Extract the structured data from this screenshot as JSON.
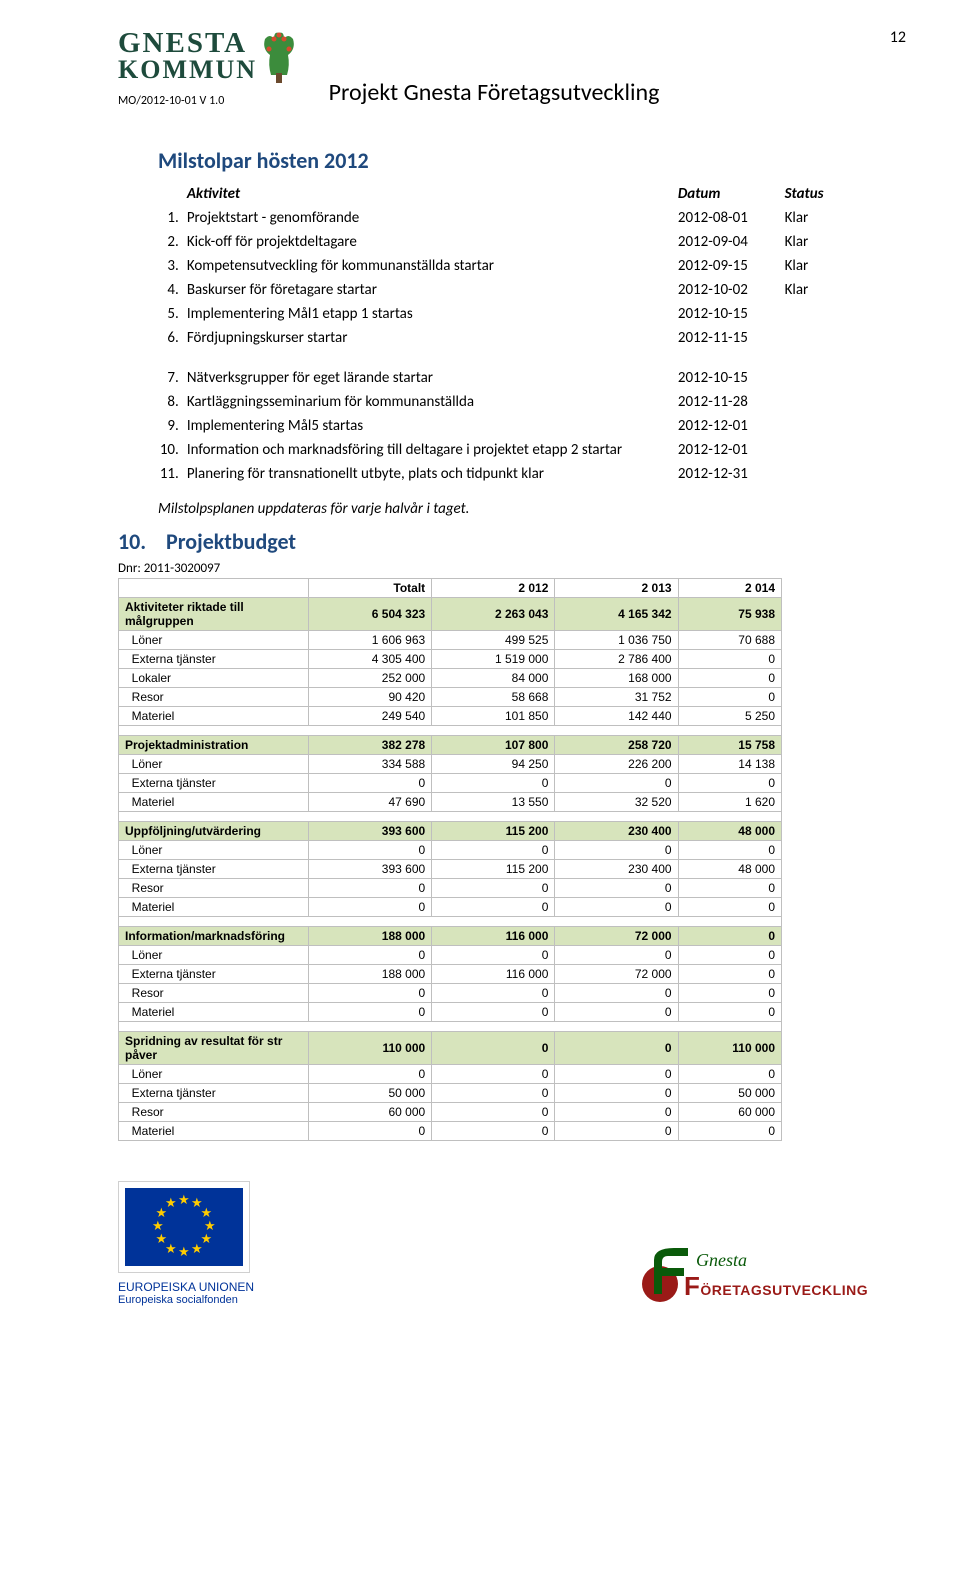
{
  "page_number": "12",
  "logo": {
    "line1": "GNESTA",
    "line2": "KOMMUN"
  },
  "docref": "MO/2012-10-01 V 1.0",
  "project_title": "Projekt Gnesta Företagsutveckling",
  "milestones": {
    "title": "Milstolpar hösten 2012",
    "headers": {
      "activity": "Aktivitet",
      "date": "Datum",
      "status": "Status"
    },
    "rows_a": [
      {
        "n": "1.",
        "activity": "Projektstart - genomförande",
        "date": "2012-08-01",
        "status": "Klar"
      },
      {
        "n": "2.",
        "activity": "Kick-off för projektdeltagare",
        "date": "2012-09-04",
        "status": "Klar"
      },
      {
        "n": "3.",
        "activity": "Kompetensutveckling för kommunanställda startar",
        "date": "2012-09-15",
        "status": "Klar"
      },
      {
        "n": "4.",
        "activity": "Baskurser för företagare startar",
        "date": "2012-10-02",
        "status": "Klar"
      },
      {
        "n": "5.",
        "activity": "Implementering Mål1 etapp 1 startas",
        "date": "2012-10-15",
        "status": ""
      },
      {
        "n": "6.",
        "activity": "Fördjupningskurser startar",
        "date": "2012-11-15",
        "status": ""
      }
    ],
    "rows_b": [
      {
        "n": "7.",
        "activity": "Nätverksgrupper för eget lärande startar",
        "date": "2012-10-15",
        "status": ""
      },
      {
        "n": "8.",
        "activity": "Kartläggningsseminarium för kommunanställda",
        "date": "2012-11-28",
        "status": ""
      },
      {
        "n": "9.",
        "activity": "Implementering Mål5 startas",
        "date": "2012-12-01",
        "status": ""
      },
      {
        "n": "10.",
        "activity": "Information och marknadsföring till deltagare i projektet etapp 2 startar",
        "date": "2012-12-01",
        "status": ""
      },
      {
        "n": "11.",
        "activity": "Planering för transnationellt utbyte, plats och tidpunkt klar",
        "date": "2012-12-31",
        "status": ""
      }
    ],
    "note": "Milstolpsplanen uppdateras för varje halvår i taget."
  },
  "budget_section": {
    "number": "10.",
    "title": "Projektbudget"
  },
  "budget": {
    "dnr": "Dnr: 2011-3020097",
    "headers": [
      "",
      "Totalt",
      "2 012",
      "2 013",
      "2 014"
    ],
    "groups": [
      {
        "category": [
          "Aktiviteter riktade till målgruppen",
          "6 504 323",
          "2 263 043",
          "4 165 342",
          "75 938"
        ],
        "rows": [
          [
            "Löner",
            "1 606 963",
            "499 525",
            "1 036 750",
            "70 688"
          ],
          [
            "Externa tjänster",
            "4 305 400",
            "1 519 000",
            "2 786 400",
            "0"
          ],
          [
            "Lokaler",
            "252 000",
            "84 000",
            "168 000",
            "0"
          ],
          [
            "Resor",
            "90 420",
            "58 668",
            "31 752",
            "0"
          ],
          [
            "Materiel",
            "249 540",
            "101 850",
            "142 440",
            "5 250"
          ]
        ]
      },
      {
        "category": [
          "Projektadministration",
          "382 278",
          "107 800",
          "258 720",
          "15 758"
        ],
        "rows": [
          [
            "Löner",
            "334 588",
            "94 250",
            "226 200",
            "14 138"
          ],
          [
            "Externa tjänster",
            "0",
            "0",
            "0",
            "0"
          ],
          [
            "Materiel",
            "47 690",
            "13 550",
            "32 520",
            "1 620"
          ]
        ]
      },
      {
        "category": [
          "Uppföljning/utvärdering",
          "393 600",
          "115 200",
          "230 400",
          "48 000"
        ],
        "rows": [
          [
            "Löner",
            "0",
            "0",
            "0",
            "0"
          ],
          [
            "Externa tjänster",
            "393 600",
            "115 200",
            "230 400",
            "48 000"
          ],
          [
            "Resor",
            "0",
            "0",
            "0",
            "0"
          ],
          [
            "Materiel",
            "0",
            "0",
            "0",
            "0"
          ]
        ]
      },
      {
        "category": [
          "Information/marknadsföring",
          "188 000",
          "116 000",
          "72 000",
          "0"
        ],
        "rows": [
          [
            "Löner",
            "0",
            "0",
            "0",
            "0"
          ],
          [
            "Externa tjänster",
            "188 000",
            "116 000",
            "72 000",
            "0"
          ],
          [
            "Resor",
            "0",
            "0",
            "0",
            "0"
          ],
          [
            "Materiel",
            "0",
            "0",
            "0",
            "0"
          ]
        ]
      },
      {
        "category": [
          "Spridning av resultat för str påver",
          "110 000",
          "0",
          "0",
          "110 000"
        ],
        "rows": [
          [
            "Löner",
            "0",
            "0",
            "0",
            "0"
          ],
          [
            "Externa tjänster",
            "50 000",
            "0",
            "0",
            "50 000"
          ],
          [
            "Resor",
            "60 000",
            "0",
            "0",
            "60 000"
          ],
          [
            "Materiel",
            "0",
            "0",
            "0",
            "0"
          ]
        ]
      }
    ]
  },
  "footer": {
    "eu_line1": "EUROPEISKA UNIONEN",
    "eu_line2": "Europeiska socialfonden",
    "fu_line1": "Gnesta",
    "fu_line2_a": "F",
    "fu_line2_b": "ÖRETAGSUTVECKLING"
  }
}
